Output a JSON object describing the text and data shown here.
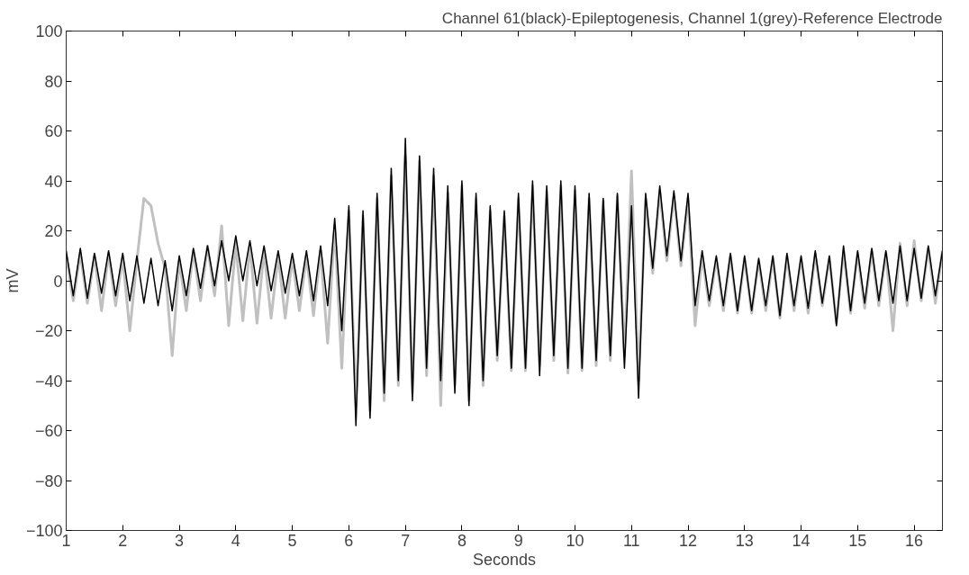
{
  "chart_data": {
    "type": "line",
    "title": "Channel 61(black)-Epileptogenesis, Channel 1(grey)-Reference Electrode",
    "xlabel": "Seconds",
    "ylabel": "mV",
    "xlim": [
      1,
      16.5
    ],
    "ylim": [
      -100,
      100
    ],
    "xticks": [
      1,
      2,
      3,
      4,
      5,
      6,
      7,
      8,
      9,
      10,
      11,
      12,
      13,
      14,
      15,
      16
    ],
    "yticks": [
      -100,
      -80,
      -60,
      -40,
      -20,
      0,
      20,
      40,
      60,
      80,
      100
    ],
    "grid": false,
    "marker": "none",
    "line_style": "solid",
    "x": [
      1,
      1.125,
      1.25,
      1.375,
      1.5,
      1.625,
      1.75,
      1.875,
      2,
      2.125,
      2.25,
      2.375,
      2.5,
      2.625,
      2.75,
      2.875,
      3,
      3.125,
      3.25,
      3.375,
      3.5,
      3.625,
      3.75,
      3.875,
      4,
      4.125,
      4.25,
      4.375,
      4.5,
      4.625,
      4.75,
      4.875,
      5,
      5.125,
      5.25,
      5.375,
      5.5,
      5.625,
      5.75,
      5.875,
      6,
      6.125,
      6.25,
      6.375,
      6.5,
      6.625,
      6.75,
      6.875,
      7,
      7.125,
      7.25,
      7.375,
      7.5,
      7.625,
      7.75,
      7.875,
      8,
      8.125,
      8.25,
      8.375,
      8.5,
      8.625,
      8.75,
      8.875,
      9,
      9.125,
      9.25,
      9.375,
      9.5,
      9.625,
      9.75,
      9.875,
      10,
      10.125,
      10.25,
      10.375,
      10.5,
      10.625,
      10.75,
      10.875,
      11,
      11.125,
      11.25,
      11.375,
      11.5,
      11.625,
      11.75,
      11.875,
      12,
      12.125,
      12.25,
      12.375,
      12.5,
      12.625,
      12.75,
      12.875,
      13,
      13.125,
      13.25,
      13.375,
      13.5,
      13.625,
      13.75,
      13.875,
      14,
      14.125,
      14.25,
      14.375,
      14.5,
      14.625,
      14.75,
      14.875,
      15,
      15.125,
      15.25,
      15.375,
      15.5,
      15.625,
      15.75,
      15.875,
      16,
      16.125,
      16.25,
      16.375,
      16.5
    ],
    "series": [
      {
        "color": "#c0c0c0",
        "values": [
          10,
          -8,
          11,
          -9,
          10,
          -12,
          11,
          -10,
          9,
          -20,
          8,
          33,
          30,
          15,
          5,
          -30,
          8,
          -12,
          12,
          -8,
          14,
          -6,
          22,
          -18,
          15,
          -16,
          14,
          -17,
          12,
          -15,
          10,
          -15,
          9,
          -12,
          10,
          -14,
          12,
          -25,
          22,
          -35,
          28,
          -50,
          26,
          -52,
          33,
          -48,
          42,
          -42,
          50,
          -45,
          48,
          -38,
          42,
          -50,
          35,
          -42,
          38,
          -48,
          33,
          -42,
          28,
          -32,
          26,
          -36,
          33,
          -36,
          38,
          -34,
          36,
          -32,
          38,
          -37,
          36,
          -36,
          33,
          -34,
          32,
          -32,
          34,
          -30,
          44,
          -40,
          33,
          3,
          36,
          8,
          34,
          6,
          33,
          -18,
          10,
          -10,
          9,
          -12,
          10,
          -13,
          9,
          -13,
          8,
          -12,
          9,
          -15,
          10,
          -12,
          9,
          -13,
          11,
          -10,
          9,
          -17,
          12,
          -13,
          11,
          -11,
          12,
          -10,
          11,
          -20,
          15,
          -10,
          16,
          -8,
          13,
          -9,
          12
        ]
      },
      {
        "color": "#000000",
        "values": [
          12,
          -6,
          13,
          -7,
          11,
          -5,
          12,
          -6,
          11,
          -8,
          10,
          -9,
          9,
          -10,
          8,
          -12,
          10,
          -6,
          13,
          -3,
          14,
          -2,
          16,
          0,
          18,
          0,
          16,
          -2,
          14,
          -4,
          12,
          -5,
          11,
          -6,
          12,
          -8,
          14,
          -10,
          25,
          -20,
          30,
          -58,
          28,
          -55,
          35,
          -45,
          45,
          -40,
          57,
          -48,
          50,
          -35,
          45,
          -40,
          38,
          -45,
          40,
          -50,
          35,
          -40,
          30,
          -30,
          28,
          -35,
          35,
          -35,
          40,
          -38,
          38,
          -30,
          40,
          -35,
          38,
          -35,
          35,
          -32,
          33,
          -30,
          35,
          -35,
          30,
          -47,
          35,
          5,
          38,
          10,
          36,
          8,
          35,
          -10,
          12,
          -8,
          10,
          -10,
          11,
          -12,
          10,
          -12,
          9,
          -10,
          10,
          -14,
          11,
          -10,
          10,
          -11,
          12,
          -9,
          10,
          -18,
          14,
          -12,
          12,
          -9,
          13,
          -8,
          12,
          -9,
          14,
          -8,
          13,
          -7,
          14,
          -6,
          12
        ]
      }
    ]
  }
}
